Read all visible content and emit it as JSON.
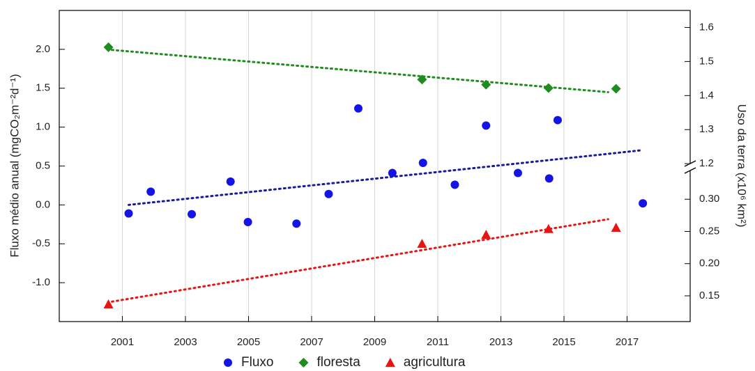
{
  "chart_data": {
    "type": "scatter",
    "xlim": [
      1999,
      2019
    ],
    "xticks": [
      2001,
      2003,
      2005,
      2007,
      2009,
      2011,
      2013,
      2015,
      2017
    ],
    "grid": true,
    "ylabel": "Fluxo médio anual (mgCO₂m⁻²d⁻¹)",
    "ylim": [
      -1.5,
      2.5
    ],
    "yticks": [
      {
        "value": -1,
        "label": "-1.0"
      },
      {
        "value": -0.5,
        "label": "-0.5"
      },
      {
        "value": 0,
        "label": "0.0"
      },
      {
        "value": 0.5,
        "label": "0.5"
      },
      {
        "value": 1,
        "label": "1.0"
      },
      {
        "value": 1.5,
        "label": "1.5"
      },
      {
        "value": 2,
        "label": "2.0"
      }
    ],
    "y2label": "Uso da terra (x10⁶ km²)",
    "y2_segments": [
      {
        "lim": [
          1.19,
          1.65
        ],
        "ticks": [
          1.2,
          1.3,
          1.4,
          1.5,
          1.6
        ]
      },
      {
        "lim": [
          0.11,
          0.35
        ],
        "ticks": [
          {
            "value": 0.15,
            "label": "0.15"
          },
          {
            "value": 0.2,
            "label": "0.20"
          },
          {
            "value": 0.25,
            "label": "0.25"
          },
          {
            "value": 0.3,
            "label": "0.30"
          }
        ]
      }
    ],
    "legend": "bottom",
    "series": [
      {
        "name": "Fluxo",
        "color": "#1414e6",
        "marker": "circle",
        "axis": "y",
        "x": [
          2001.2,
          2001.9,
          2003.2,
          2004.43,
          2004.98,
          2006.52,
          2007.54,
          2008.48,
          2009.56,
          2010.53,
          2011.54,
          2012.53,
          2013.54,
          2014.53,
          2014.8,
          2017.5
        ],
        "values": [
          -0.11,
          0.17,
          -0.12,
          0.3,
          -0.22,
          -0.24,
          0.14,
          1.24,
          0.41,
          0.54,
          0.26,
          1.02,
          0.41,
          0.34,
          1.09,
          0.02
        ]
      },
      {
        "name": "floresta",
        "color": "#1e8c1e",
        "marker": "diamond",
        "axis": "y2",
        "segment": 0,
        "x": [
          2000.56,
          2010.5,
          2012.53,
          2014.51,
          2016.65
        ],
        "values": [
          1.542,
          1.447,
          1.432,
          1.422,
          1.42
        ]
      },
      {
        "name": "agricultura",
        "color": "#e81414",
        "marker": "triangle",
        "axis": "y2",
        "segment": 1,
        "x": [
          2000.56,
          2010.5,
          2012.53,
          2014.51,
          2016.65
        ],
        "values": [
          0.137,
          0.231,
          0.245,
          0.254,
          0.256
        ]
      }
    ],
    "trends": [
      {
        "color": "#1a1a9e",
        "axis": "y",
        "x": [
          2001.2,
          2017.4
        ],
        "values": [
          0,
          0.7
        ]
      },
      {
        "color": "#1e8c1e",
        "axis": "y2",
        "segment": 0,
        "x": [
          2000.67,
          2016.4
        ],
        "values": [
          1.534,
          1.41
        ]
      },
      {
        "color": "#e81414",
        "axis": "y2",
        "segment": 1,
        "x": [
          2000.67,
          2016.4
        ],
        "values": [
          0.141,
          0.269
        ]
      }
    ]
  }
}
